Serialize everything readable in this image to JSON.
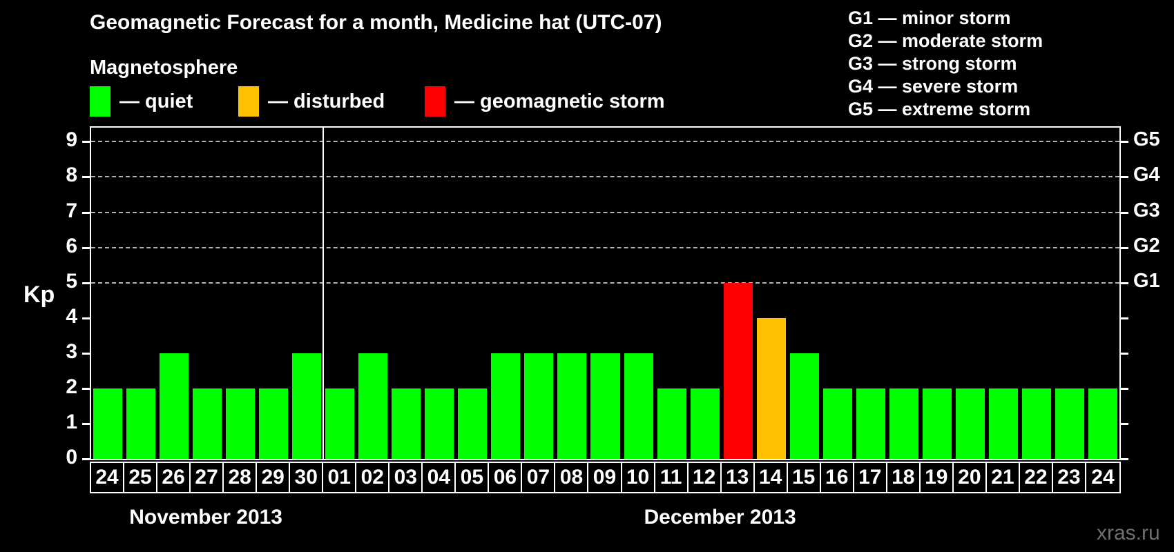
{
  "page": {
    "watermark": "xras.ru"
  },
  "magnetosphere_legend": {
    "heading": "Magnetosphere",
    "items": [
      {
        "status": "quiet",
        "label": "— quiet"
      },
      {
        "status": "disturbed",
        "label": "— disturbed"
      },
      {
        "status": "storm",
        "label": "— geomagnetic storm"
      }
    ]
  },
  "storm_scale_legend": {
    "lines": [
      "G1 — minor storm",
      "G2 — moderate storm",
      "G3 — strong storm",
      "G4 — severe storm",
      "G5 — extreme storm"
    ]
  },
  "chart_data": {
    "type": "bar",
    "title": "Geomagnetic Forecast for a month, Medicine hat (UTC-07)",
    "ylabel": "Kp",
    "ylim": [
      0,
      9.4
    ],
    "yticks": [
      0,
      1,
      2,
      3,
      4,
      5,
      6,
      7,
      8,
      9
    ],
    "grid_levels": [
      5,
      6,
      7,
      8,
      9
    ],
    "grid_on": true,
    "legend_position": "top-left",
    "right_axis": {
      "labels": [
        {
          "kp": 5,
          "label": "G1"
        },
        {
          "kp": 6,
          "label": "G2"
        },
        {
          "kp": 7,
          "label": "G3"
        },
        {
          "kp": 8,
          "label": "G4"
        },
        {
          "kp": 9,
          "label": "G5"
        }
      ]
    },
    "status_colors": {
      "quiet": "#00ff00",
      "disturbed": "#ffc000",
      "storm": "#ff0000"
    },
    "sections": [
      {
        "label": "November 2013",
        "days": [
          {
            "day": "24",
            "kp": 2,
            "status": "quiet"
          },
          {
            "day": "25",
            "kp": 2,
            "status": "quiet"
          },
          {
            "day": "26",
            "kp": 3,
            "status": "quiet"
          },
          {
            "day": "27",
            "kp": 2,
            "status": "quiet"
          },
          {
            "day": "28",
            "kp": 2,
            "status": "quiet"
          },
          {
            "day": "29",
            "kp": 2,
            "status": "quiet"
          },
          {
            "day": "30",
            "kp": 3,
            "status": "quiet"
          }
        ]
      },
      {
        "label": "December 2013",
        "days": [
          {
            "day": "01",
            "kp": 2,
            "status": "quiet"
          },
          {
            "day": "02",
            "kp": 3,
            "status": "quiet"
          },
          {
            "day": "03",
            "kp": 2,
            "status": "quiet"
          },
          {
            "day": "04",
            "kp": 2,
            "status": "quiet"
          },
          {
            "day": "05",
            "kp": 2,
            "status": "quiet"
          },
          {
            "day": "06",
            "kp": 3,
            "status": "quiet"
          },
          {
            "day": "07",
            "kp": 3,
            "status": "quiet"
          },
          {
            "day": "08",
            "kp": 3,
            "status": "quiet"
          },
          {
            "day": "09",
            "kp": 3,
            "status": "quiet"
          },
          {
            "day": "10",
            "kp": 3,
            "status": "quiet"
          },
          {
            "day": "11",
            "kp": 2,
            "status": "quiet"
          },
          {
            "day": "12",
            "kp": 2,
            "status": "quiet"
          },
          {
            "day": "13",
            "kp": 5,
            "status": "storm"
          },
          {
            "day": "14",
            "kp": 4,
            "status": "disturbed"
          },
          {
            "day": "15",
            "kp": 3,
            "status": "quiet"
          },
          {
            "day": "16",
            "kp": 2,
            "status": "quiet"
          },
          {
            "day": "17",
            "kp": 2,
            "status": "quiet"
          },
          {
            "day": "18",
            "kp": 2,
            "status": "quiet"
          },
          {
            "day": "19",
            "kp": 2,
            "status": "quiet"
          },
          {
            "day": "20",
            "kp": 2,
            "status": "quiet"
          },
          {
            "day": "21",
            "kp": 2,
            "status": "quiet"
          },
          {
            "day": "22",
            "kp": 2,
            "status": "quiet"
          },
          {
            "day": "23",
            "kp": 2,
            "status": "quiet"
          },
          {
            "day": "24",
            "kp": 2,
            "status": "quiet"
          }
        ]
      }
    ]
  }
}
